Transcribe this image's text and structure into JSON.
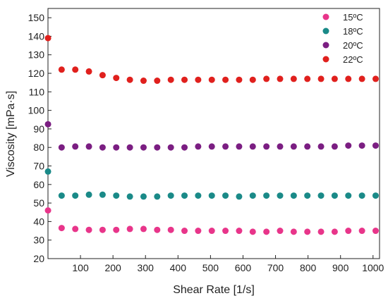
{
  "chart_data": {
    "type": "scatter",
    "xlabel": "Shear Rate [1/s]",
    "ylabel": "Viscosity [mPa·s]",
    "xlim": [
      0,
      1020
    ],
    "ylim": [
      20,
      155
    ],
    "xticks": [
      100,
      200,
      300,
      400,
      500,
      600,
      700,
      800,
      900,
      1000
    ],
    "yticks": [
      20,
      30,
      40,
      50,
      60,
      70,
      80,
      90,
      100,
      110,
      120,
      130,
      140,
      150
    ],
    "grid": false,
    "legend_position": "top-right",
    "x": [
      0.1,
      42,
      84,
      126,
      168,
      210,
      252,
      294,
      336,
      378,
      420,
      462,
      504,
      546,
      588,
      630,
      672,
      714,
      756,
      798,
      840,
      882,
      924,
      966,
      1008
    ],
    "series": [
      {
        "name": "15ºC",
        "color": "#e8358a",
        "values": [
          46,
          36.5,
          36,
          35.5,
          35.5,
          35.5,
          36,
          36,
          35.5,
          35.5,
          35,
          35,
          35,
          35,
          35,
          34.5,
          34.5,
          35,
          34.5,
          34.5,
          34.5,
          34.5,
          35,
          35,
          35
        ]
      },
      {
        "name": "18ºC",
        "color": "#1a8a88",
        "values": [
          67,
          54,
          54,
          54.5,
          54.5,
          54,
          53.5,
          53.5,
          53.5,
          54,
          54,
          54,
          54,
          54,
          53.5,
          54,
          54,
          54,
          54,
          54,
          54,
          54,
          54,
          54,
          54
        ]
      },
      {
        "name": "20ºC",
        "color": "#7b1e82",
        "values": [
          92.5,
          80,
          80.5,
          80.5,
          80,
          80,
          80,
          80,
          80,
          80,
          80,
          80.5,
          80.5,
          80.5,
          80.5,
          80.5,
          80.5,
          80.5,
          80.5,
          80.5,
          80.5,
          80.5,
          81,
          81,
          81
        ]
      },
      {
        "name": "22ºC",
        "color": "#e0201d",
        "values": [
          139,
          122,
          122,
          121,
          119,
          117.5,
          116.5,
          116,
          116,
          116.5,
          116.5,
          116.5,
          116.5,
          116.5,
          116.5,
          116.5,
          117,
          117,
          117,
          117,
          117,
          117,
          117,
          117,
          117
        ]
      }
    ]
  }
}
